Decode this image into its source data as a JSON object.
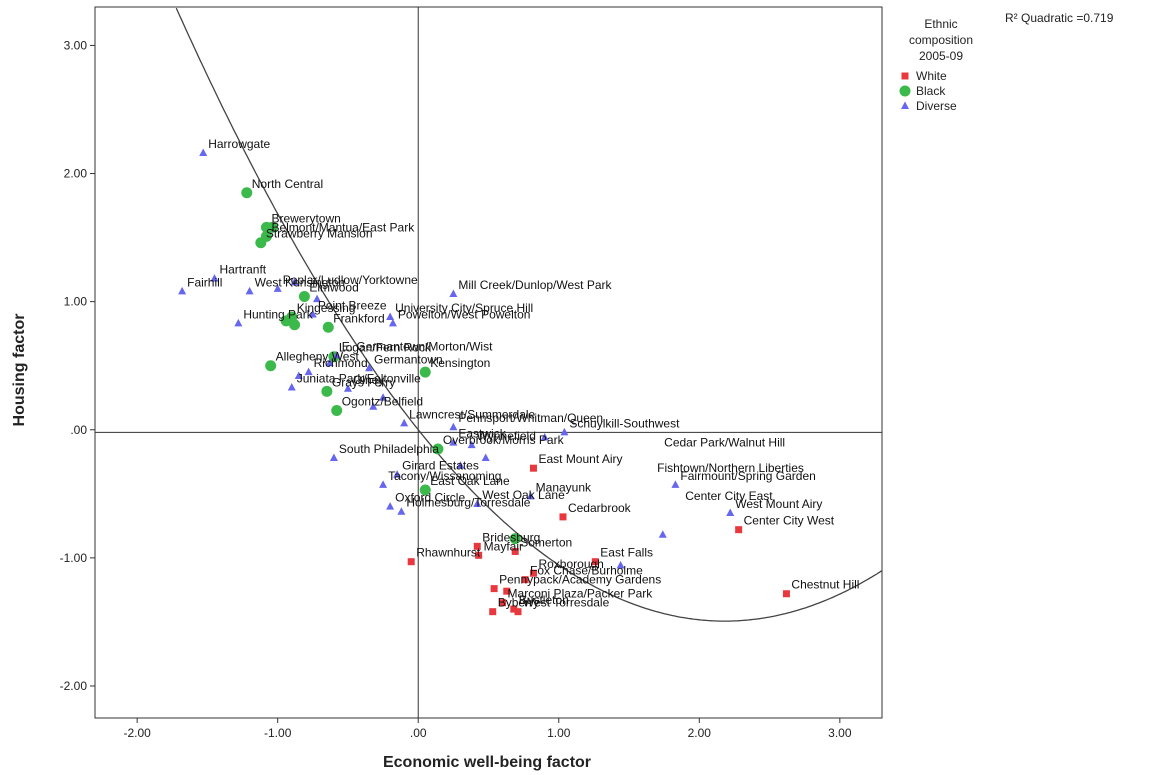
{
  "chart_data": {
    "type": "scatter",
    "title": "",
    "xlabel": "Economic well-being factor",
    "ylabel": "Housing factor",
    "xlim": [
      -2.3,
      3.3
    ],
    "ylim": [
      -2.25,
      3.3
    ],
    "x_ticks": [
      {
        "value": -2,
        "label": "-2.00"
      },
      {
        "value": -1,
        "label": "-1.00"
      },
      {
        "value": 0,
        "label": ".00"
      },
      {
        "value": 1,
        "label": "1.00"
      },
      {
        "value": 2,
        "label": "2.00"
      },
      {
        "value": 3,
        "label": "3.00"
      }
    ],
    "y_ticks": [
      {
        "value": 3,
        "label": "3.00"
      },
      {
        "value": 2,
        "label": "2.00"
      },
      {
        "value": 1,
        "label": "1.00"
      },
      {
        "value": 0,
        "label": ".00"
      },
      {
        "value": -1,
        "label": "-1.00"
      },
      {
        "value": -2,
        "label": "-2.00"
      }
    ],
    "reference_lines": {
      "x": 0.0,
      "y": -0.02
    },
    "fit": {
      "type": "quadratic",
      "label": "R² Quadratic =0.719",
      "a": 0.3143,
      "b": -1.3706,
      "c": 0.0005
    },
    "legend": {
      "title_lines": [
        "Ethnic",
        "composition",
        "2005-09"
      ],
      "position": "top-right",
      "items": [
        {
          "name": "White",
          "marker": "square",
          "color": "#e8383d"
        },
        {
          "name": "Black",
          "marker": "circle",
          "color": "#3cb94b"
        },
        {
          "name": "Diverse",
          "marker": "triangle",
          "color": "#6666ee"
        }
      ]
    },
    "series": [
      {
        "name": "White",
        "marker": "square",
        "color": "#e8383d",
        "points": [
          {
            "x": 0.82,
            "y": -0.3,
            "label": "East Mount Airy"
          },
          {
            "x": 1.03,
            "y": -0.68,
            "label": "Cedarbrook"
          },
          {
            "x": 2.28,
            "y": -0.78,
            "label": "Center City West"
          },
          {
            "x": 0.42,
            "y": -0.91,
            "label": "Bridesburg"
          },
          {
            "x": 0.69,
            "y": -0.95,
            "label": "Somerton"
          },
          {
            "x": 0.43,
            "y": -0.98,
            "label": "Mayfair"
          },
          {
            "x": -0.05,
            "y": -1.03,
            "label": "Rhawnhurst"
          },
          {
            "x": 1.26,
            "y": -1.03,
            "label": "East Falls"
          },
          {
            "x": 0.82,
            "y": -1.12,
            "label": "Roxborough"
          },
          {
            "x": 0.76,
            "y": -1.17,
            "label": "Fox Chase/Burholme"
          },
          {
            "x": 0.54,
            "y": -1.24,
            "label": "Pennypack/Academy Gardens"
          },
          {
            "x": 0.63,
            "y": -1.26,
            "label": ""
          },
          {
            "x": 2.62,
            "y": -1.28,
            "label": "Chestnut Hill"
          },
          {
            "x": 0.6,
            "y": -1.35,
            "label": "Marconi Plaza/Packer Park"
          },
          {
            "x": 0.68,
            "y": -1.4,
            "label": "Bustleton"
          },
          {
            "x": 0.53,
            "y": -1.42,
            "label": "Byberry"
          },
          {
            "x": 0.71,
            "y": -1.42,
            "label": "West Torresdale"
          }
        ]
      },
      {
        "name": "Black",
        "marker": "circle",
        "color": "#3cb94b",
        "points": [
          {
            "x": -1.22,
            "y": 1.85,
            "label": "North Central"
          },
          {
            "x": -1.08,
            "y": 1.58,
            "label": "Brewerytown"
          },
          {
            "x": -1.04,
            "y": 1.58,
            "label": ""
          },
          {
            "x": -1.12,
            "y": 1.46,
            "label": "Strawberry Mansion"
          },
          {
            "x": -1.08,
            "y": 1.51,
            "label": "Belmont/Mantua/East Park"
          },
          {
            "x": -0.81,
            "y": 1.04,
            "label": "Elmwood"
          },
          {
            "x": -0.9,
            "y": 0.88,
            "label": "Kingessing"
          },
          {
            "x": -0.94,
            "y": 0.85,
            "label": ""
          },
          {
            "x": -0.88,
            "y": 0.82,
            "label": ""
          },
          {
            "x": -0.64,
            "y": 0.8,
            "label": "Frankford"
          },
          {
            "x": -0.6,
            "y": 0.57,
            "label": "Logan/Fern Rock"
          },
          {
            "x": 0.05,
            "y": 0.45,
            "label": "Kensington"
          },
          {
            "x": -1.05,
            "y": 0.5,
            "label": "Allegheny West"
          },
          {
            "x": -0.65,
            "y": 0.3,
            "label": "Grays Ferry"
          },
          {
            "x": -0.58,
            "y": 0.15,
            "label": "Ogontz/Belfield"
          },
          {
            "x": 0.14,
            "y": -0.15,
            "label": "Overbrook/Morris Park"
          },
          {
            "x": 0.05,
            "y": -0.47,
            "label": "East Oak Lane"
          },
          {
            "x": 0.69,
            "y": -0.85,
            "label": ""
          }
        ]
      },
      {
        "name": "Diverse",
        "marker": "triangle",
        "color": "#6666ee",
        "points": [
          {
            "x": -1.53,
            "y": 2.16,
            "label": "Harrowgate"
          },
          {
            "x": -1.45,
            "y": 1.18,
            "label": "Hartranft"
          },
          {
            "x": -1.68,
            "y": 1.08,
            "label": "Fairhill"
          },
          {
            "x": -1.2,
            "y": 1.08,
            "label": "West Kensington"
          },
          {
            "x": -1.0,
            "y": 1.1,
            "label": "Poplar/Ludlow/Yorktowne"
          },
          {
            "x": -0.88,
            "y": 1.15,
            "label": ""
          },
          {
            "x": -0.72,
            "y": 1.02,
            "label": ""
          },
          {
            "x": 0.25,
            "y": 1.06,
            "label": "Mill Creek/Dunlop/West Park"
          },
          {
            "x": -0.75,
            "y": 0.9,
            "label": "Point Breeze"
          },
          {
            "x": -1.28,
            "y": 0.83,
            "label": "Hunting Park"
          },
          {
            "x": -0.2,
            "y": 0.88,
            "label": "University City/Spruce Hill"
          },
          {
            "x": -0.18,
            "y": 0.83,
            "label": "Powelton/West Powelton"
          },
          {
            "x": -0.58,
            "y": 0.58,
            "label": "E. Germantown/Morton/Wist"
          },
          {
            "x": -0.63,
            "y": 0.52,
            "label": ""
          },
          {
            "x": -0.35,
            "y": 0.48,
            "label": "Germantown"
          },
          {
            "x": -0.78,
            "y": 0.45,
            "label": "Richmond"
          },
          {
            "x": -0.85,
            "y": 0.42,
            "label": ""
          },
          {
            "x": -0.9,
            "y": 0.33,
            "label": "Juniata Park/Feltonville"
          },
          {
            "x": -0.5,
            "y": 0.32,
            "label": "Olney"
          },
          {
            "x": -0.25,
            "y": 0.25,
            "label": ""
          },
          {
            "x": -0.32,
            "y": 0.18,
            "label": ""
          },
          {
            "x": -0.1,
            "y": 0.05,
            "label": "Lawncrest/Summerdale"
          },
          {
            "x": 0.25,
            "y": 0.02,
            "label": "Pennsport/Whitman/Queen"
          },
          {
            "x": 0.25,
            "y": -0.1,
            "label": "Eastwick"
          },
          {
            "x": 0.38,
            "y": -0.12,
            "label": "Wynnefield"
          },
          {
            "x": 1.04,
            "y": -0.02,
            "label": "Schuylkill-Southwest"
          },
          {
            "x": 0.9,
            "y": -0.06,
            "label": ""
          },
          {
            "x": -0.6,
            "y": -0.22,
            "label": "South Philadelphia"
          },
          {
            "x": 0.48,
            "y": -0.22,
            "label": ""
          },
          {
            "x": -0.15,
            "y": -0.35,
            "label": "Girard Estates"
          },
          {
            "x": 0.3,
            "y": -0.28,
            "label": ""
          },
          {
            "x": -0.25,
            "y": -0.43,
            "label": "Tacony/Wissanoming"
          },
          {
            "x": 0.8,
            "y": -0.52,
            "label": "Manayunk"
          },
          {
            "x": 1.83,
            "y": -0.43,
            "label": "Fairmount/Spring Garden"
          },
          {
            "x": 2.22,
            "y": -0.65,
            "label": "West Mount Airy"
          },
          {
            "x": -0.2,
            "y": -0.6,
            "label": "Oxford Circle"
          },
          {
            "x": -0.12,
            "y": -0.64,
            "label": "Holmesburg/Torresdale"
          },
          {
            "x": 0.42,
            "y": -0.58,
            "label": "West Oak Lane"
          },
          {
            "x": 1.74,
            "y": -0.82,
            "label": ""
          },
          {
            "x": 1.44,
            "y": -1.06,
            "label": ""
          }
        ]
      }
    ],
    "extra_labels": [
      {
        "x": 1.75,
        "y": -0.13,
        "label": "Cedar Park/Walnut Hill"
      },
      {
        "x": 1.7,
        "y": -0.33,
        "label": "Fishtown/Northern Liberties"
      },
      {
        "x": 1.9,
        "y": -0.55,
        "label": "Center City East"
      }
    ]
  }
}
